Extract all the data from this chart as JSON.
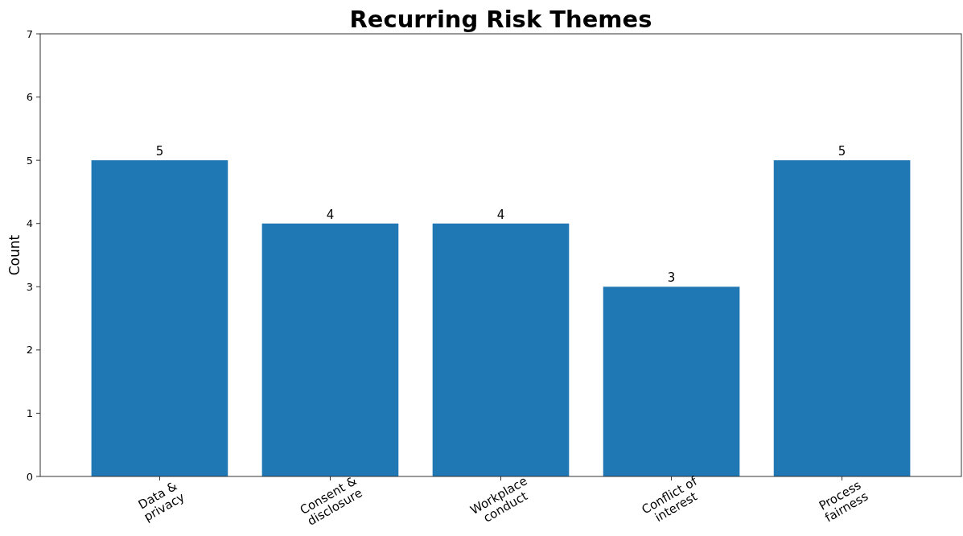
{
  "chart_data": {
    "type": "bar",
    "title": "Recurring Risk Themes",
    "ylabel": "Count",
    "categories": [
      "Data &\nprivacy",
      "Consent &\ndisclosure",
      "Workplace\nconduct",
      "Conflict of\ninterest",
      "Process\nfairness"
    ],
    "values": [
      5,
      4,
      4,
      3,
      5
    ],
    "color": "#1f77b4",
    "data_labels": true,
    "ylim": [
      0,
      7
    ],
    "yticks": [
      0,
      1,
      2,
      3,
      4,
      5,
      6,
      7
    ],
    "grid": false
  }
}
